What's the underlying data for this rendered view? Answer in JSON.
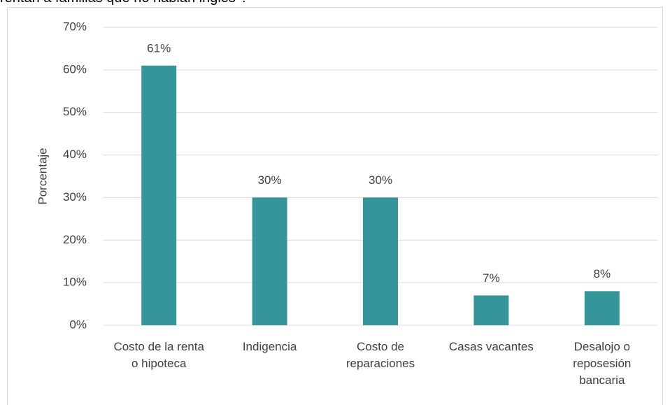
{
  "chart_data": {
    "type": "bar",
    "title": "rentan a familias que no hablan inglés”?",
    "y_label": "Porcentaje",
    "categories": [
      "Costo de la renta o hipoteca",
      "Indigencia",
      "Costo de reparaciones",
      "Casas vacantes",
      "Desalojo o reposesión bancaria"
    ],
    "values": [
      61,
      30,
      30,
      7,
      8
    ],
    "value_labels": [
      "61%",
      "30%",
      "30%",
      "7%",
      "8%"
    ],
    "color": "#35959b",
    "ylim": [
      0,
      70
    ],
    "yticks": [
      {
        "value": 0,
        "label": "0%"
      },
      {
        "value": 10,
        "label": "10%"
      },
      {
        "value": 20,
        "label": "20%"
      },
      {
        "value": 30,
        "label": "30%"
      },
      {
        "value": 40,
        "label": "40%"
      },
      {
        "value": 50,
        "label": "50%"
      },
      {
        "value": 60,
        "label": "60%"
      },
      {
        "value": 70,
        "label": "70%"
      }
    ],
    "grid": true
  }
}
